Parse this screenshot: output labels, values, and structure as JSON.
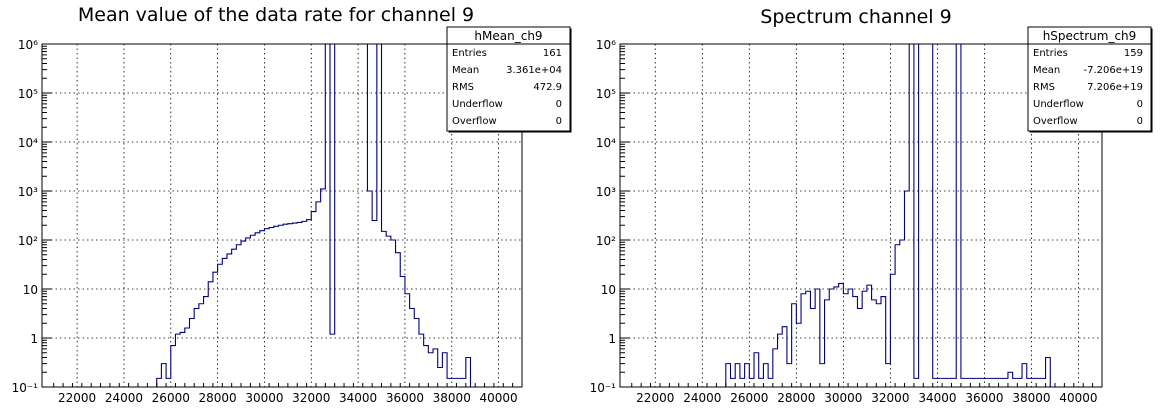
{
  "chart_data": [
    {
      "type": "histogram",
      "title": "Mean value of the data rate for channel 9",
      "xlim": [
        20500,
        41000
      ],
      "ylim": [
        0.1,
        1000000
      ],
      "yscale": "log",
      "grid": true,
      "x_ticks": [
        22000,
        24000,
        26000,
        28000,
        30000,
        32000,
        34000,
        36000,
        38000,
        40000
      ],
      "y_ticks": [
        "10⁻¹",
        "1",
        "10",
        "10²",
        "10³",
        "10⁴",
        "10⁵",
        "10⁶"
      ],
      "line_color": "#000080",
      "stats_box": {
        "name": "hMean_ch9",
        "placement": "top-right",
        "rows": [
          {
            "label": "Entries",
            "value": "161"
          },
          {
            "label": "Mean",
            "value": "3.361e+04"
          },
          {
            "label": "RMS",
            "value": "472.9"
          },
          {
            "label": "Underflow",
            "value": "0"
          },
          {
            "label": "Overflow",
            "value": "0"
          }
        ]
      },
      "bins": [
        [
          25400,
          0.15
        ],
        [
          25600,
          0.3
        ],
        [
          25800,
          0.15
        ],
        [
          26000,
          0.7
        ],
        [
          26200,
          1.2
        ],
        [
          26400,
          1.3
        ],
        [
          26600,
          1.6
        ],
        [
          26800,
          2.5
        ],
        [
          27000,
          4
        ],
        [
          27200,
          5
        ],
        [
          27400,
          7
        ],
        [
          27600,
          14
        ],
        [
          27800,
          22
        ],
        [
          28000,
          32
        ],
        [
          28200,
          42
        ],
        [
          28400,
          52
        ],
        [
          28600,
          65
        ],
        [
          28800,
          80
        ],
        [
          29000,
          95
        ],
        [
          29200,
          110
        ],
        [
          29400,
          125
        ],
        [
          29600,
          140
        ],
        [
          29800,
          155
        ],
        [
          30000,
          170
        ],
        [
          30200,
          180
        ],
        [
          30400,
          190
        ],
        [
          30600,
          200
        ],
        [
          30800,
          210
        ],
        [
          31000,
          215
        ],
        [
          31200,
          222
        ],
        [
          31400,
          228
        ],
        [
          31600,
          240
        ],
        [
          31800,
          260
        ],
        [
          32000,
          380
        ],
        [
          32200,
          600
        ],
        [
          32400,
          1100
        ],
        [
          32600,
          1000000
        ],
        [
          32800,
          1.2
        ],
        [
          33000,
          1000000
        ],
        [
          33200,
          1000000
        ],
        [
          33400,
          1000000
        ],
        [
          33600,
          1000000
        ],
        [
          33800,
          1000000
        ],
        [
          34000,
          1000000
        ],
        [
          34200,
          1000000
        ],
        [
          34400,
          1000
        ],
        [
          34600,
          250
        ],
        [
          34800,
          1000000
        ],
        [
          35000,
          150
        ],
        [
          35200,
          120
        ],
        [
          35400,
          100
        ],
        [
          35600,
          55
        ],
        [
          35800,
          18
        ],
        [
          36000,
          8
        ],
        [
          36200,
          4
        ],
        [
          36400,
          2.5
        ],
        [
          36600,
          1.2
        ],
        [
          36800,
          0.7
        ],
        [
          37000,
          0.5
        ],
        [
          37200,
          0.6
        ],
        [
          37400,
          0.25
        ],
        [
          37600,
          0.5
        ],
        [
          37800,
          0.15
        ],
        [
          38000,
          0.15
        ],
        [
          38200,
          0.15
        ],
        [
          38400,
          0.15
        ],
        [
          38600,
          0.4
        ]
      ]
    },
    {
      "type": "histogram",
      "title": "Spectrum channel 9",
      "xlim": [
        20500,
        41000
      ],
      "ylim": [
        0.1,
        1000000
      ],
      "yscale": "log",
      "grid": true,
      "x_ticks": [
        22000,
        24000,
        26000,
        28000,
        30000,
        32000,
        34000,
        36000,
        38000,
        40000
      ],
      "y_ticks": [
        "10⁻¹",
        "1",
        "10",
        "10²",
        "10³",
        "10⁴",
        "10⁵",
        "10⁶"
      ],
      "line_color": "#000080",
      "stats_box": {
        "name": "hSpectrum_ch9",
        "placement": "top-right",
        "rows": [
          {
            "label": "Entries",
            "value": "159"
          },
          {
            "label": "Mean",
            "value": "-7.206e+19"
          },
          {
            "label": "RMS",
            "value": "7.206e+19"
          },
          {
            "label": "Underflow",
            "value": "0"
          },
          {
            "label": "Overflow",
            "value": "0"
          }
        ]
      },
      "bins": [
        [
          25000,
          0.3
        ],
        [
          25200,
          0.15
        ],
        [
          25400,
          0.3
        ],
        [
          25600,
          0.15
        ],
        [
          25800,
          0.3
        ],
        [
          26000,
          0.15
        ],
        [
          26200,
          0.5
        ],
        [
          26400,
          0.15
        ],
        [
          26600,
          0.3
        ],
        [
          26800,
          0.15
        ],
        [
          27000,
          0.6
        ],
        [
          27200,
          1.2
        ],
        [
          27400,
          1.7
        ],
        [
          27600,
          0.3
        ],
        [
          27800,
          5
        ],
        [
          28000,
          2
        ],
        [
          28200,
          8
        ],
        [
          28400,
          9
        ],
        [
          28600,
          4
        ],
        [
          28800,
          10
        ],
        [
          29000,
          0.3
        ],
        [
          29200,
          6
        ],
        [
          29400,
          10
        ],
        [
          29600,
          11
        ],
        [
          29800,
          13
        ],
        [
          30000,
          8
        ],
        [
          30200,
          10
        ],
        [
          30400,
          7
        ],
        [
          30600,
          4
        ],
        [
          30800,
          9
        ],
        [
          31000,
          12
        ],
        [
          31200,
          6
        ],
        [
          31400,
          5
        ],
        [
          31600,
          7
        ],
        [
          31800,
          0.3
        ],
        [
          32000,
          20
        ],
        [
          32200,
          80
        ],
        [
          32400,
          100
        ],
        [
          32600,
          1000
        ],
        [
          32800,
          1000000
        ],
        [
          33000,
          0.15
        ],
        [
          33200,
          1000000
        ],
        [
          33400,
          1000000
        ],
        [
          33600,
          1000000
        ],
        [
          33800,
          0.15
        ],
        [
          34000,
          0.15
        ],
        [
          34200,
          0.15
        ],
        [
          34400,
          0.15
        ],
        [
          34600,
          0.15
        ],
        [
          34800,
          1000000
        ],
        [
          35000,
          0.15
        ],
        [
          35200,
          0.15
        ],
        [
          35400,
          0.15
        ],
        [
          35600,
          0.15
        ],
        [
          35800,
          0.15
        ],
        [
          36000,
          0.15
        ],
        [
          36200,
          0.15
        ],
        [
          36400,
          0.15
        ],
        [
          36600,
          0.15
        ],
        [
          36800,
          0.15
        ],
        [
          37000,
          0.2
        ],
        [
          37200,
          0.15
        ],
        [
          37400,
          0.15
        ],
        [
          37600,
          0.3
        ],
        [
          37800,
          0.15
        ],
        [
          38000,
          0.15
        ],
        [
          38200,
          0.15
        ],
        [
          38400,
          0.15
        ],
        [
          38600,
          0.4
        ]
      ]
    }
  ]
}
